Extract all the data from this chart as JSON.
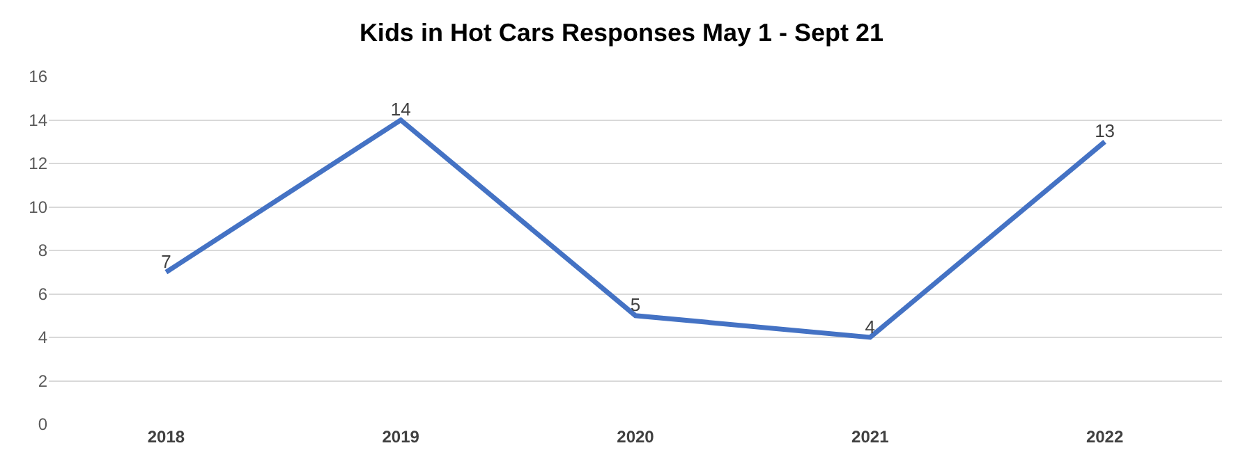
{
  "chart_data": {
    "type": "line",
    "title": "Kids in Hot Cars Responses May 1 - Sept 21",
    "categories": [
      "2018",
      "2019",
      "2020",
      "2021",
      "2022"
    ],
    "series": [
      {
        "color": "#4472c4",
        "values": [
          7,
          14,
          5,
          4,
          13
        ]
      }
    ],
    "ylim": [
      0,
      16
    ],
    "yticks": [
      0,
      2,
      4,
      6,
      8,
      10,
      12,
      14,
      16
    ],
    "grid": "y",
    "data_labels": true,
    "legend": false,
    "marker": "none",
    "line_style": "solid"
  }
}
